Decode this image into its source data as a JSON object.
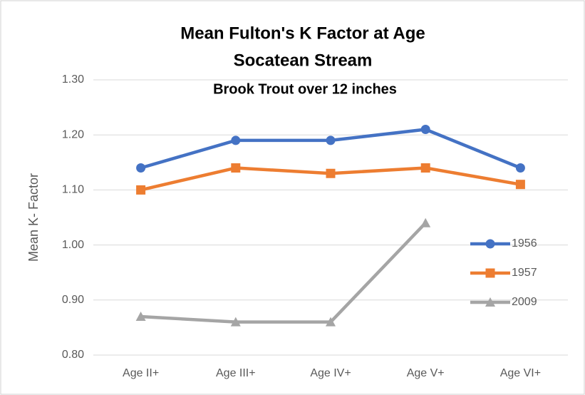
{
  "chart_data": {
    "type": "line",
    "title": [
      "Mean Fulton's K Factor at Age",
      "Socatean  Stream"
    ],
    "subtitle": "Brook Trout over 12 inches",
    "y_label": "Mean K- Factor",
    "categories": [
      "Age II+",
      "Age III+",
      "Age IV+",
      "Age V+",
      "Age VI+"
    ],
    "series": [
      {
        "name": "1956",
        "color": "#4472c4",
        "marker": "circle",
        "values": [
          1.14,
          1.19,
          1.19,
          1.21,
          1.14
        ]
      },
      {
        "name": "1957",
        "color": "#ed7d31",
        "marker": "square",
        "values": [
          1.1,
          1.14,
          1.13,
          1.14,
          1.11
        ]
      },
      {
        "name": "2009",
        "color": "#a5a5a5",
        "marker": "triangle",
        "values": [
          0.87,
          0.86,
          0.86,
          1.04,
          null
        ]
      }
    ],
    "ylim": [
      0.8,
      1.3
    ],
    "yticks": [
      {
        "value": 0.8,
        "label": "0.80"
      },
      {
        "value": 0.9,
        "label": "0.90"
      },
      {
        "value": 1.0,
        "label": "1.00"
      },
      {
        "value": 1.1,
        "label": "1.10"
      },
      {
        "value": 1.2,
        "label": "1.20"
      },
      {
        "value": 1.3,
        "label": "1.30"
      }
    ],
    "grid": true,
    "legend": "right"
  }
}
